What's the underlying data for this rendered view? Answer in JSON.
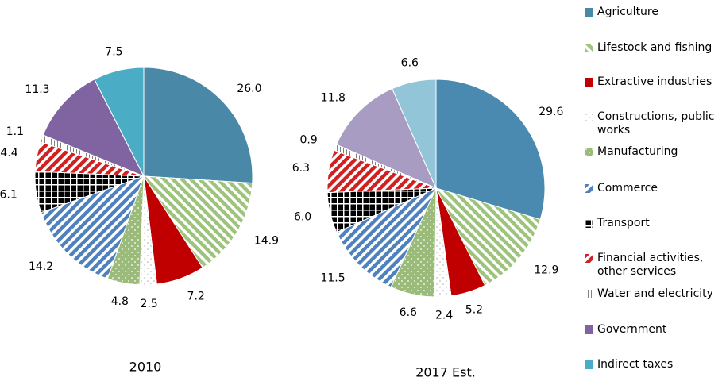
{
  "chart_data": [
    {
      "type": "pie",
      "title": "2010",
      "categories": [
        "Agriculture",
        "Lifestock and fishing",
        "Extractive industries",
        "Constructions, public works",
        "Manufacturing",
        "Commerce",
        "Transport",
        "Financial activities, other services",
        "Water and electricity",
        "Government",
        "Indirect taxes"
      ],
      "values": [
        26.0,
        14.9,
        7.2,
        2.5,
        4.8,
        14.2,
        6.1,
        4.4,
        1.1,
        11.3,
        7.5
      ],
      "value_labels": [
        "26.0",
        "14.9",
        "7.2",
        "2.5",
        "4.8",
        "14.2",
        "6.1",
        "4.4",
        "1.1",
        "11.3",
        "7.5"
      ],
      "colors": [
        "#4a88a8",
        "#9dc37c",
        "#c00000",
        "#bfbfbf",
        "#9bbb7b",
        "#4f81bd",
        "#000000",
        "#d02020",
        "#808080",
        "#8064a2",
        "#4bacc6"
      ],
      "patterns": [
        "solid",
        "diag-back",
        "solid",
        "dots",
        "dotsfill",
        "diag",
        "grid",
        "diag",
        "vlines",
        "solid",
        "solid"
      ]
    },
    {
      "type": "pie",
      "title": "2017 Est.",
      "categories": [
        "Agriculture",
        "Lifestock and fishing",
        "Extractive industries",
        "Constructions, public works",
        "Manufacturing",
        "Commerce",
        "Transport",
        "Financial activities, other services",
        "Water and electricity",
        "Government",
        "Indirect taxes"
      ],
      "values": [
        29.6,
        12.9,
        5.2,
        2.4,
        6.6,
        11.5,
        6.0,
        6.3,
        0.9,
        11.8,
        6.6
      ],
      "value_labels": [
        "29.6",
        "12.9",
        "5.2",
        "2.4",
        "6.6",
        "11.5",
        "6.0",
        "6.3",
        "0.9",
        "11.8",
        "6.6"
      ],
      "colors": [
        "#4a8ab0",
        "#9dc37c",
        "#c00000",
        "#bfbfbf",
        "#9bbb7b",
        "#4f81bd",
        "#000000",
        "#d02020",
        "#808080",
        "#a99cc2",
        "#92c5d8"
      ],
      "patterns": [
        "solid",
        "diag-back",
        "solid",
        "dots",
        "dotsfill",
        "diag",
        "grid",
        "diag",
        "vlines",
        "solid",
        "solid"
      ]
    }
  ]
}
